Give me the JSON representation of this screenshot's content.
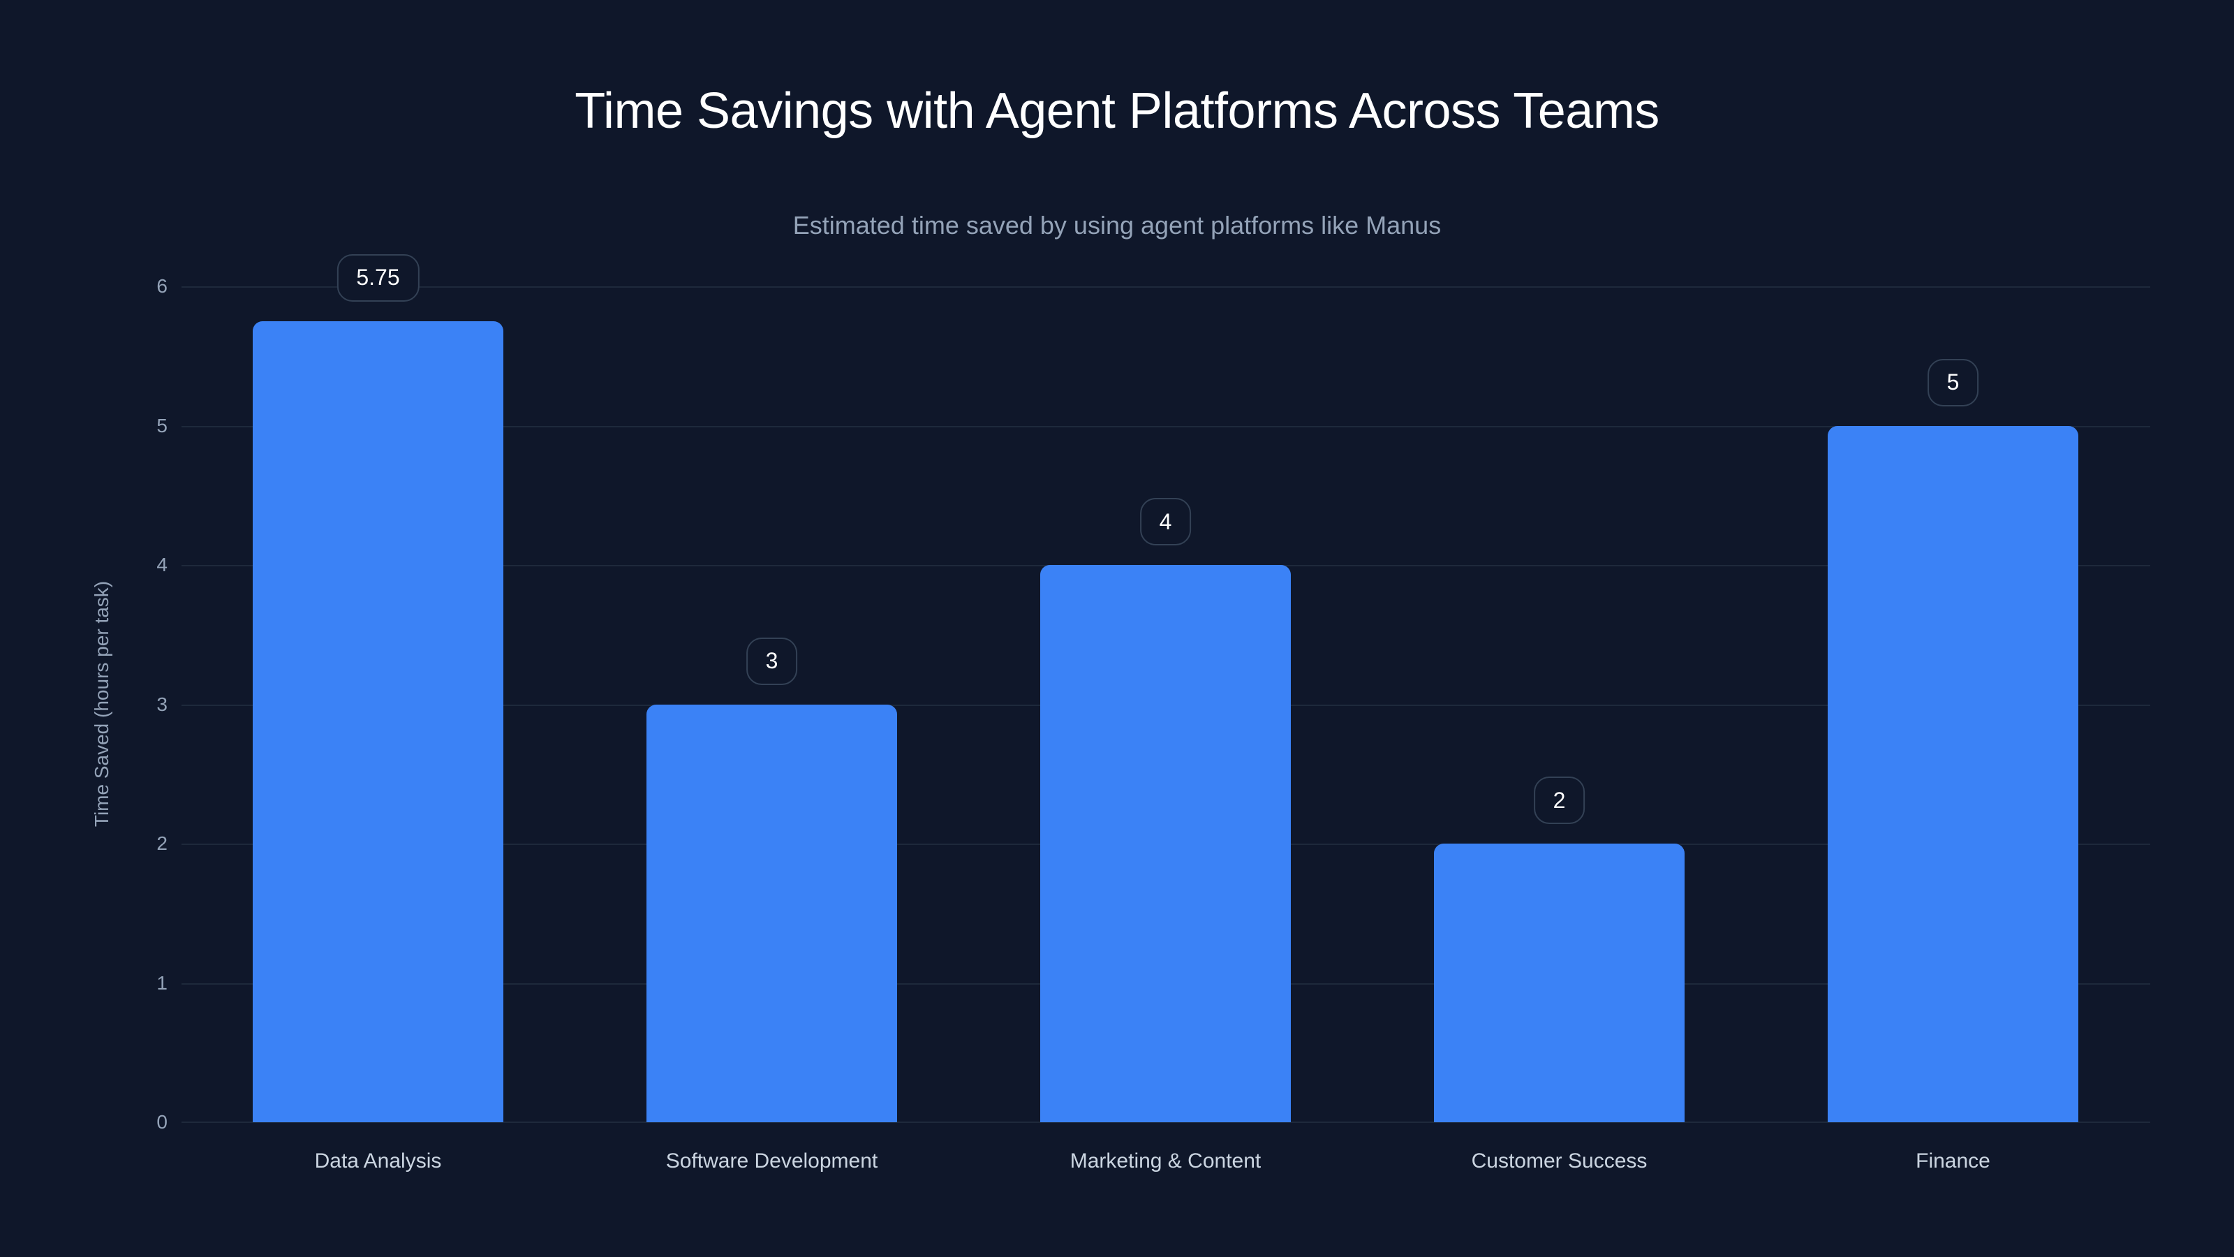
{
  "header": {
    "title": "Time Savings with Agent Platforms Across Teams",
    "subtitle": "Estimated time saved by using agent platforms like Manus"
  },
  "colors": {
    "background": "#0f172a",
    "bar": "#3b82f6",
    "grid": "#1e293b"
  },
  "chart_data": {
    "type": "bar",
    "title": "Time Savings with Agent Platforms Across Teams",
    "subtitle": "Estimated time saved by using agent platforms like Manus",
    "xlabel": "",
    "ylabel": "Time Saved (hours per task)",
    "categories": [
      "Data Analysis",
      "Software Development",
      "Marketing & Content",
      "Customer Success",
      "Finance"
    ],
    "values": [
      5.75,
      3,
      4,
      2,
      5
    ],
    "data_labels": [
      "5.75",
      "3",
      "4",
      "2",
      "5"
    ],
    "ylim": [
      0,
      6
    ],
    "yticks": [
      "0",
      "1",
      "2",
      "3",
      "4",
      "5",
      "6"
    ],
    "grid": true,
    "legend": null
  }
}
